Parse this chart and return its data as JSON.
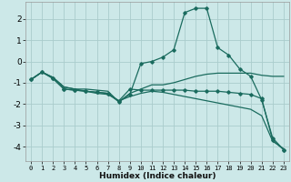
{
  "xlabel": "Humidex (Indice chaleur)",
  "bg_color": "#cce8e8",
  "grid_color": "#aacccc",
  "line_color": "#1a6b5e",
  "xlim": [
    -0.5,
    23.5
  ],
  "ylim": [
    -4.7,
    2.8
  ],
  "yticks": [
    -4,
    -3,
    -2,
    -1,
    0,
    1,
    2
  ],
  "xticks": [
    0,
    1,
    2,
    3,
    4,
    5,
    6,
    7,
    8,
    9,
    10,
    11,
    12,
    13,
    14,
    15,
    16,
    17,
    18,
    19,
    20,
    21,
    22,
    23
  ],
  "series": [
    {
      "x": [
        0,
        1,
        2,
        3,
        4,
        5,
        6,
        7,
        8,
        9,
        10,
        11,
        12,
        13,
        14,
        15,
        16,
        17,
        18,
        19,
        20,
        21,
        22,
        23
      ],
      "y": [
        -0.85,
        -0.5,
        -0.75,
        -1.2,
        -1.3,
        -1.3,
        -1.35,
        -1.4,
        -1.9,
        -1.5,
        -1.3,
        -1.1,
        -1.1,
        -1.0,
        -0.85,
        -0.7,
        -0.6,
        -0.55,
        -0.55,
        -0.55,
        -0.55,
        -0.65,
        -0.7,
        -0.7
      ],
      "marker": false
    },
    {
      "x": [
        0,
        1,
        2,
        3,
        4,
        5,
        6,
        7,
        8,
        9,
        10,
        11,
        12,
        13,
        14,
        15,
        16,
        17,
        18,
        19,
        20,
        21,
        22,
        23
      ],
      "y": [
        -0.85,
        -0.5,
        -0.75,
        -1.2,
        -1.3,
        -1.4,
        -1.5,
        -1.55,
        -1.85,
        -1.65,
        -1.5,
        -1.4,
        -1.45,
        -1.55,
        -1.65,
        -1.75,
        -1.85,
        -1.95,
        -2.05,
        -2.15,
        -2.25,
        -2.55,
        -3.75,
        -4.1
      ],
      "marker": false
    },
    {
      "x": [
        0,
        1,
        2,
        3,
        4,
        5,
        6,
        7,
        8,
        9,
        10,
        11,
        12,
        13,
        14,
        15,
        16,
        17,
        18,
        19,
        20,
        21,
        22,
        23
      ],
      "y": [
        -0.85,
        -0.5,
        -0.8,
        -1.3,
        -1.35,
        -1.4,
        -1.45,
        -1.5,
        -1.9,
        -1.55,
        -0.1,
        -0.0,
        0.2,
        0.55,
        2.3,
        2.5,
        2.5,
        0.65,
        0.3,
        -0.35,
        -0.7,
        -1.8,
        -3.6,
        -4.15
      ],
      "marker": true
    },
    {
      "x": [
        0,
        1,
        2,
        3,
        4,
        5,
        6,
        7,
        8,
        9,
        10,
        11,
        12,
        13,
        14,
        15,
        16,
        17,
        18,
        19,
        20,
        21,
        22,
        23
      ],
      "y": [
        -0.85,
        -0.5,
        -0.8,
        -1.3,
        -1.35,
        -1.4,
        -1.45,
        -1.5,
        -1.85,
        -1.3,
        -1.35,
        -1.35,
        -1.35,
        -1.35,
        -1.35,
        -1.4,
        -1.4,
        -1.4,
        -1.45,
        -1.5,
        -1.55,
        -1.75,
        -3.7,
        -4.15
      ],
      "marker": true
    }
  ]
}
